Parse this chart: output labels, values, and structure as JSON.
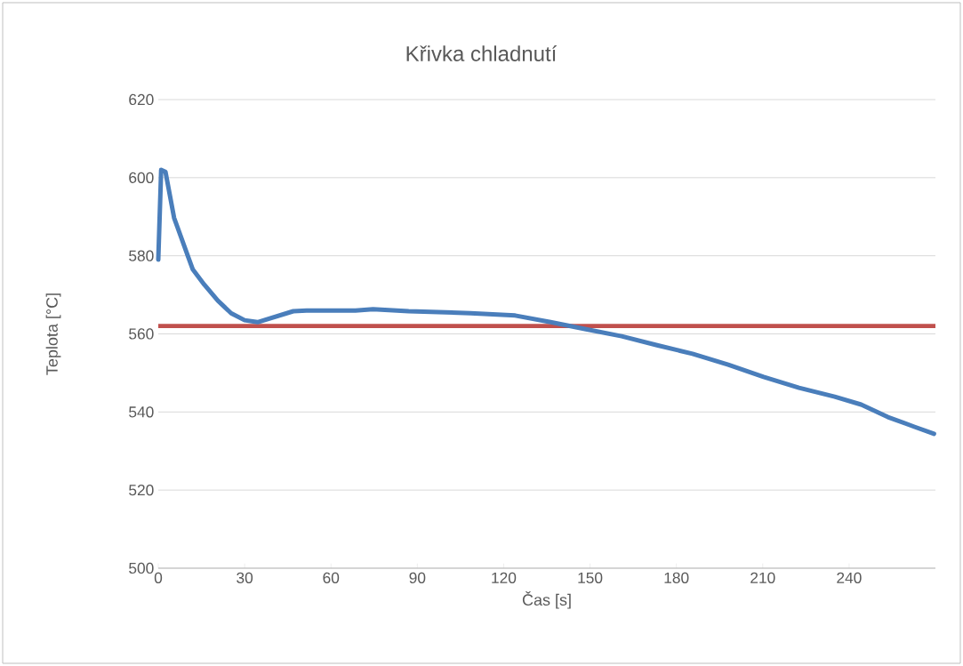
{
  "chart_data": {
    "type": "line",
    "title": "Křivka chladnutí",
    "xlabel": "Čas  [s]",
    "ylabel": "Teplota [°C]",
    "xlim": [
      0,
      270
    ],
    "ylim": [
      500,
      620
    ],
    "xticks": [
      0,
      30,
      60,
      90,
      120,
      150,
      180,
      210,
      240
    ],
    "yticks": [
      500,
      520,
      540,
      560,
      580,
      600,
      620
    ],
    "grid": "y",
    "series": [
      {
        "color": "#4a7ebb",
        "x": [
          0,
          1,
          2.5,
          5.5,
          10.5,
          12,
          16,
          20.7,
          25.3,
          30,
          34.5,
          40.7,
          46.9,
          51.5,
          68.5,
          74.6,
          87,
          108.5,
          124,
          136.3,
          148.6,
          161,
          173.3,
          185.6,
          198,
          210.3,
          222.6,
          235,
          244.2,
          253.5,
          262.7,
          269.5
        ],
        "values": [
          579,
          602,
          601.5,
          589.7,
          579.5,
          576.5,
          572.6,
          568.5,
          565.3,
          563.5,
          563,
          564.4,
          565.8,
          566,
          566,
          566.3,
          565.8,
          565.3,
          564.7,
          563,
          561.2,
          559.4,
          557.1,
          554.9,
          552.1,
          549,
          546.2,
          543.9,
          541.9,
          538.7,
          536.2,
          534.4
        ]
      }
    ],
    "ref_lines": [
      {
        "axis": "y",
        "value": 562,
        "color": "#c0504d"
      }
    ]
  }
}
